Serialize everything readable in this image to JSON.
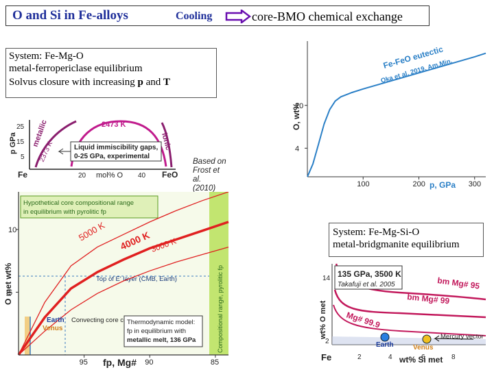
{
  "header": {
    "title": "O and Si in Fe-alloys",
    "cooling": "Cooling",
    "exchange": "core-BMO chemical exchange",
    "accent_color": "#1f2f9a",
    "arrow_color": "#6a0fb0"
  },
  "system1": {
    "line1": "System: Fe-Mg-O",
    "line2": "metal-ferropericlase equilibrium",
    "line3_prefix": "Solvus closure with increasing ",
    "p": "p",
    "and": " and ",
    "T": "T"
  },
  "system2": {
    "line1": "System: Fe-Mg-Si-O",
    "line2": "metal-bridgmanite equilibrium"
  },
  "frost_note": [
    "Based on",
    "Frost et al.",
    "(2010)"
  ],
  "chart_data": [
    {
      "id": "phase-diagram",
      "type": "line",
      "xlabel": "mol% O",
      "ylabel": "p GPa",
      "x_tick_labels": [
        "Fe",
        "20",
        "40",
        "FeO"
      ],
      "y_tick_labels": [
        "5",
        "15",
        "25"
      ],
      "series": [
        {
          "name": "2473 K",
          "color": "#c01a8c",
          "x": [
            15,
            22,
            28,
            35,
            41,
            45
          ],
          "y": [
            12,
            23,
            26,
            26,
            21,
            5
          ]
        },
        {
          "name": "2373 K",
          "color": "#8a1e6e",
          "x": [
            3,
            6,
            9,
            11
          ],
          "y": [
            5,
            14,
            22,
            28
          ]
        },
        {
          "name": "2373 K ionic",
          "color": "#8a1e6e",
          "x": [
            46,
            48,
            49
          ],
          "y": [
            23,
            15,
            5
          ]
        }
      ],
      "annotations": [
        "metallic",
        "ionic",
        "2473 K",
        "2373 K",
        "Liquid immiscibility gaps,",
        "0-25 GPa, experimental"
      ]
    },
    {
      "id": "eutectic",
      "type": "line",
      "title": "Fe-FeO eutectic",
      "subtitle": "Oka et al. 2019, Am.Min.",
      "xlabel": "p, GPa",
      "ylabel": "O, wt%",
      "x_ticks": [
        100,
        200,
        300
      ],
      "y_ticks": [
        4,
        10
      ],
      "xlim": [
        0,
        320
      ],
      "ylim": [
        0,
        19
      ],
      "series": [
        {
          "name": "Fe-FeO eutectic",
          "color": "#2a7fc6",
          "x": [
            0,
            10,
            20,
            30,
            40,
            50,
            60,
            80,
            100,
            140,
            180,
            220,
            260,
            300,
            320
          ],
          "y": [
            0,
            1.8,
            4.6,
            7.4,
            9.4,
            10.6,
            11.2,
            11.8,
            12.3,
            13.2,
            14.1,
            15.0,
            15.9,
            16.8,
            17.3
          ]
        }
      ]
    },
    {
      "id": "core-range",
      "type": "line",
      "xlabel": "fp, Mg#",
      "ylabel": "O met wt%",
      "x_ticks": [
        95,
        90,
        85
      ],
      "y_ticks": [
        5,
        10
      ],
      "xlim": [
        100,
        84
      ],
      "ylim": [
        0,
        13
      ],
      "series": [
        {
          "name": "5000 K",
          "color": "#e02020",
          "x": [
            100,
            98,
            96,
            94,
            92,
            90,
            88,
            86,
            84
          ],
          "y": [
            0,
            4.2,
            7.1,
            8.6,
            9.6,
            10.6,
            11.5,
            12.3,
            13
          ]
        },
        {
          "name": "4000 K",
          "color": "#e02020",
          "x": [
            100,
            98,
            96,
            94,
            92,
            90,
            88,
            86,
            84
          ],
          "y": [
            0,
            3.0,
            5.3,
            6.6,
            7.6,
            8.5,
            9.2,
            9.9,
            10.6
          ]
        },
        {
          "name": "3000 K",
          "color": "#e02020",
          "x": [
            100,
            98,
            96,
            94,
            92,
            90,
            88,
            86,
            84
          ],
          "y": [
            0,
            1.9,
            3.6,
            4.9,
            5.9,
            6.7,
            7.4,
            8.0,
            8.6
          ]
        }
      ],
      "annotations": [
        "Hypothetical core compositional range",
        "in equilibrium with pyrolitic fp",
        "Top of E' layer (CMB, Earth)",
        "Earth",
        "Venus",
        "Convecting core compositions",
        "Thermodynamic model:",
        "fp in equilibrium with",
        "metallic melt, 136 GPa",
        "Compositional range, pyrolitic fp"
      ]
    },
    {
      "id": "bridgmanite",
      "type": "line",
      "title": "135 GPa, 3500 K",
      "subtitle": "Takafuji et al. 2005",
      "xlabel": "wt% Si met",
      "ylabel": "wt% O met",
      "x_tick_labels": [
        "Fe",
        "2",
        "4",
        "6",
        "8"
      ],
      "y_ticks": [
        2,
        14
      ],
      "series": [
        {
          "name": "bm Mg# 95",
          "color": "#c2185b"
        },
        {
          "name": "bm Mg# 99",
          "color": "#c2185b"
        },
        {
          "name": "Mg# 99.9",
          "color": "#c2185b"
        }
      ],
      "annotations": [
        "Earth",
        "Venus",
        "Mercury vector"
      ]
    }
  ]
}
